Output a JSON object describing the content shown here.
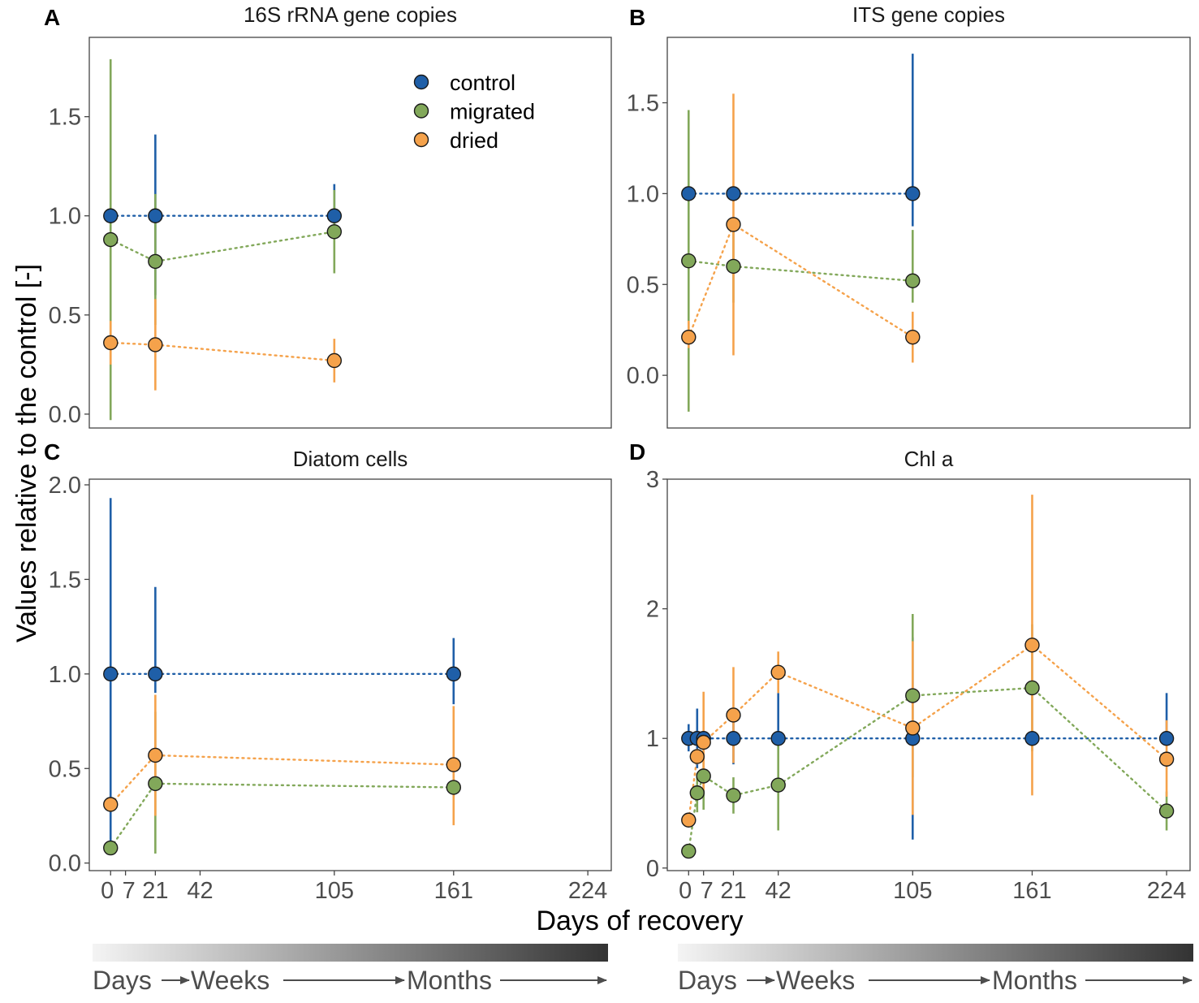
{
  "figure": {
    "y_axis_title": "Values relative to the control [-]",
    "x_axis_title": "Days of recovery",
    "legend": [
      {
        "name": "control",
        "color": "#1f5fa8"
      },
      {
        "name": "migrated",
        "color": "#82a85a"
      },
      {
        "name": "dried",
        "color": "#f5a24b"
      }
    ],
    "timeline": {
      "labels": [
        "Days",
        "Weeks",
        "Months"
      ]
    }
  },
  "chart_data": [
    {
      "id": "A",
      "type": "scatter",
      "title": "16S rRNA gene copies",
      "xlabel": "Days of recovery",
      "ylabel": "Values relative to the control [-]",
      "xlim": [
        -10,
        235
      ],
      "ylim": [
        -0.07,
        1.9
      ],
      "yticks": [
        0.0,
        0.5,
        1.0,
        1.5
      ],
      "ytick_labels": [
        "0.0",
        "0.5",
        "1.0",
        "1.5"
      ],
      "xticks": [],
      "xtick_labels": [],
      "legend": "top-right",
      "series": [
        {
          "name": "control",
          "color": "#1f5fa8",
          "x": [
            0,
            21,
            105
          ],
          "y": [
            1.0,
            1.0,
            1.0
          ],
          "lo": [
            1.0,
            0.6,
            0.9
          ],
          "hi": [
            1.0,
            1.41,
            1.16
          ]
        },
        {
          "name": "migrated",
          "color": "#82a85a",
          "x": [
            0,
            21,
            105
          ],
          "y": [
            0.88,
            0.77,
            0.92
          ],
          "lo": [
            -0.03,
            0.45,
            0.71
          ],
          "hi": [
            1.79,
            1.11,
            1.13
          ]
        },
        {
          "name": "dried",
          "color": "#f5a24b",
          "x": [
            0,
            21,
            105
          ],
          "y": [
            0.36,
            0.35,
            0.27
          ],
          "lo": [
            0.25,
            0.12,
            0.16
          ],
          "hi": [
            0.47,
            0.58,
            0.38
          ]
        }
      ]
    },
    {
      "id": "B",
      "type": "scatter",
      "title": "ITS gene copies",
      "xlabel": "Days of recovery",
      "ylabel": "Values relative to the control [-]",
      "xlim": [
        -10,
        235
      ],
      "ylim": [
        -0.29,
        1.86
      ],
      "yticks": [
        0.0,
        0.5,
        1.0,
        1.5
      ],
      "ytick_labels": [
        "0.0",
        "0.5",
        "1.0",
        "1.5"
      ],
      "xticks": [],
      "xtick_labels": [],
      "series": [
        {
          "name": "control",
          "color": "#1f5fa8",
          "x": [
            0,
            21,
            105
          ],
          "y": [
            1.0,
            1.0,
            1.0
          ],
          "lo": [
            1.0,
            1.0,
            0.82
          ],
          "hi": [
            1.0,
            1.0,
            1.77
          ]
        },
        {
          "name": "migrated",
          "color": "#82a85a",
          "x": [
            0,
            21,
            105
          ],
          "y": [
            0.63,
            0.6,
            0.52
          ],
          "lo": [
            -0.2,
            0.4,
            0.4
          ],
          "hi": [
            1.46,
            0.8,
            0.8
          ]
        },
        {
          "name": "dried",
          "color": "#f5a24b",
          "x": [
            0,
            21,
            105
          ],
          "y": [
            0.21,
            0.83,
            0.21
          ],
          "lo": [
            0.15,
            0.11,
            0.07
          ],
          "hi": [
            0.3,
            1.55,
            0.35
          ]
        }
      ]
    },
    {
      "id": "C",
      "type": "scatter",
      "title": "Diatom cells",
      "xlabel": "Days of recovery",
      "ylabel": "Values relative to the control [-]",
      "xlim": [
        -10,
        235
      ],
      "ylim": [
        -0.04,
        2.03
      ],
      "yticks": [
        0.0,
        0.5,
        1.0,
        1.5,
        2.0
      ],
      "ytick_labels": [
        "0.0",
        "0.5",
        "1.0",
        "1.5",
        "2.0"
      ],
      "xticks": [
        0,
        7,
        21,
        42,
        105,
        161,
        224
      ],
      "xtick_labels": [
        "0",
        "7",
        "21",
        "42",
        "105",
        "161",
        "224"
      ],
      "series": [
        {
          "name": "control",
          "color": "#1f5fa8",
          "x": [
            0,
            21,
            161
          ],
          "y": [
            1.0,
            1.0,
            1.0
          ],
          "lo": [
            0.07,
            0.9,
            0.84
          ],
          "hi": [
            1.93,
            1.46,
            1.19
          ]
        },
        {
          "name": "migrated",
          "color": "#82a85a",
          "x": [
            0,
            21,
            161
          ],
          "y": [
            0.08,
            0.42,
            0.4
          ],
          "lo": [
            0.05,
            0.05,
            0.35
          ],
          "hi": [
            0.11,
            0.8,
            0.45
          ]
        },
        {
          "name": "dried",
          "color": "#f5a24b",
          "x": [
            0,
            21,
            161
          ],
          "y": [
            0.31,
            0.57,
            0.52
          ],
          "lo": [
            0.27,
            0.25,
            0.2
          ],
          "hi": [
            0.35,
            0.89,
            0.83
          ]
        }
      ]
    },
    {
      "id": "D",
      "type": "scatter",
      "title": "Chl a",
      "xlabel": "Days of recovery",
      "ylabel": "Values relative to the control [-]",
      "xlim": [
        -10,
        235
      ],
      "ylim": [
        -0.02,
        3.0
      ],
      "yticks": [
        0,
        1,
        2,
        3
      ],
      "ytick_labels": [
        "0",
        "1",
        "2",
        "3"
      ],
      "xticks": [
        0,
        7,
        21,
        42,
        105,
        161,
        224
      ],
      "xtick_labels": [
        "0",
        "7",
        "21",
        "42",
        "105",
        "161",
        "224"
      ],
      "series": [
        {
          "name": "control",
          "color": "#1f5fa8",
          "x": [
            0,
            4,
            7,
            21,
            42,
            105,
            161,
            224
          ],
          "y": [
            1,
            1,
            1,
            1,
            1,
            1,
            1,
            1
          ],
          "lo": [
            0.9,
            0.77,
            1.0,
            0.8,
            1.0,
            0.22,
            1.0,
            1.0
          ],
          "hi": [
            1.11,
            1.23,
            1.0,
            1.2,
            1.35,
            1.78,
            1.0,
            1.35
          ]
        },
        {
          "name": "migrated",
          "color": "#82a85a",
          "x": [
            0,
            4,
            7,
            21,
            42,
            105,
            161,
            224
          ],
          "y": [
            0.13,
            0.58,
            0.71,
            0.56,
            0.64,
            1.33,
            1.39,
            0.44
          ],
          "lo": [
            0.1,
            0.43,
            0.45,
            0.42,
            0.29,
            0.7,
            0.9,
            0.29
          ],
          "hi": [
            0.16,
            0.73,
            0.97,
            0.7,
            0.99,
            1.96,
            1.88,
            0.59
          ]
        },
        {
          "name": "dried",
          "color": "#f5a24b",
          "x": [
            0,
            4,
            7,
            21,
            42,
            105,
            161,
            224
          ],
          "y": [
            0.37,
            0.86,
            0.97,
            1.18,
            1.51,
            1.08,
            1.72,
            0.84
          ],
          "lo": [
            0.33,
            0.8,
            0.6,
            0.81,
            1.35,
            0.41,
            0.56,
            0.55
          ],
          "hi": [
            0.41,
            0.92,
            1.36,
            1.55,
            1.67,
            1.75,
            2.88,
            1.14
          ]
        }
      ]
    }
  ]
}
